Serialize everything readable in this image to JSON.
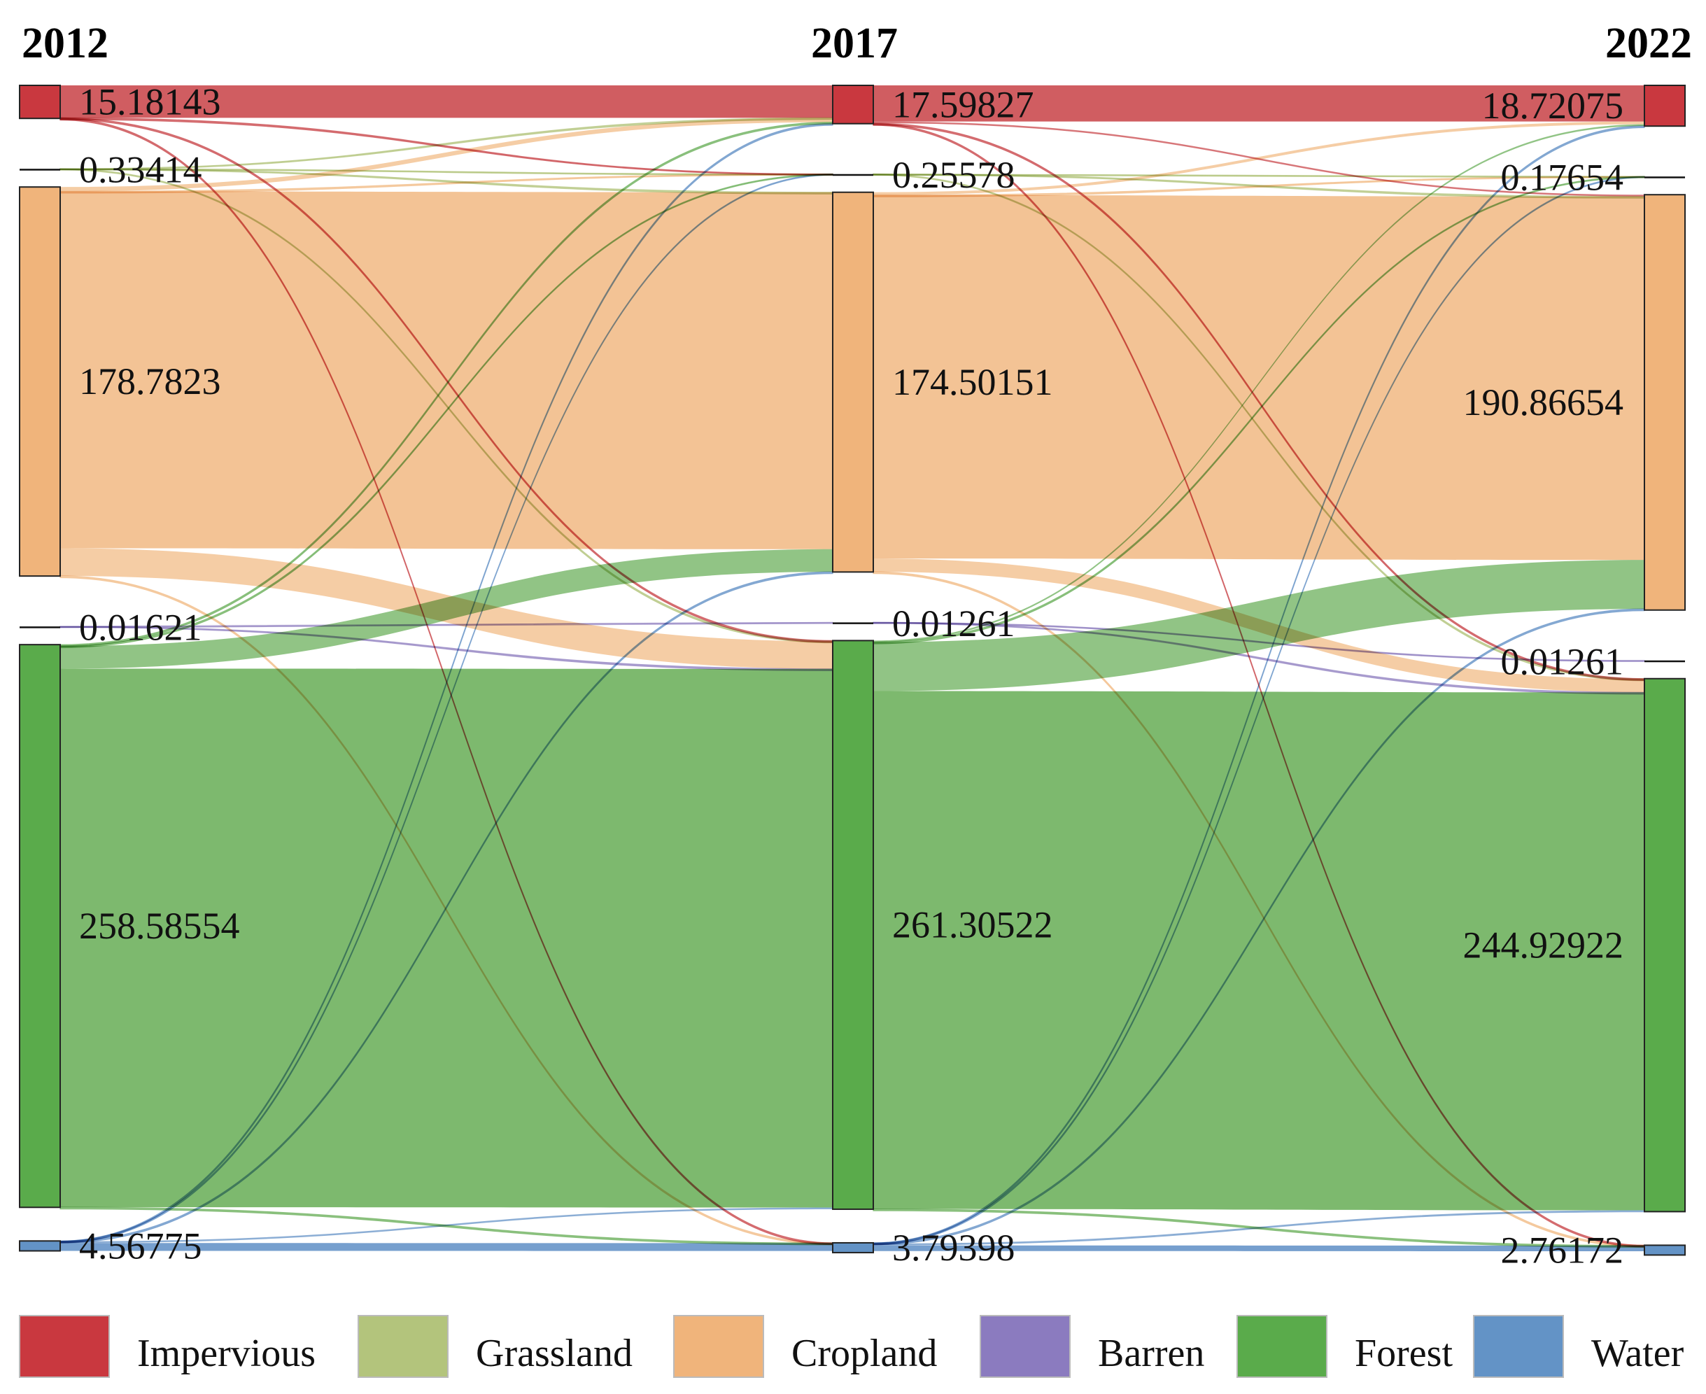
{
  "chart_data": {
    "type": "sankey",
    "title": "",
    "columns": [
      "2012",
      "2017",
      "2022"
    ],
    "categories": [
      {
        "key": "impervious",
        "name": "Impervious",
        "color": "#c9383f",
        "flow_color": "#cd5458"
      },
      {
        "key": "grassland",
        "name": "Grassland",
        "color": "#b3c47c",
        "flow_color": "#b8c885"
      },
      {
        "key": "cropland",
        "name": "Cropland",
        "color": "#f0b47b",
        "flow_color": "#f2c08f"
      },
      {
        "key": "barren",
        "name": "Barren",
        "color": "#8b7bbf",
        "flow_color": "#9a8bc6"
      },
      {
        "key": "forest",
        "name": "Forest",
        "color": "#5aab4b",
        "flow_color": "#76b566"
      },
      {
        "key": "water",
        "name": "Water",
        "color": "#6393c6",
        "flow_color": "#6f9acb"
      }
    ],
    "nodes": [
      {
        "column": "2012",
        "category": "impervious",
        "value": 15.18143,
        "label": "15.18143"
      },
      {
        "column": "2012",
        "category": "grassland",
        "value": 0.33414,
        "label": "0.33414"
      },
      {
        "column": "2012",
        "category": "cropland",
        "value": 178.7823,
        "label": "178.7823"
      },
      {
        "column": "2012",
        "category": "barren",
        "value": 0.01621,
        "label": "0.01621"
      },
      {
        "column": "2012",
        "category": "forest",
        "value": 258.58554,
        "label": "258.58554"
      },
      {
        "column": "2012",
        "category": "water",
        "value": 4.56775,
        "label": "4.56775"
      },
      {
        "column": "2017",
        "category": "impervious",
        "value": 17.59827,
        "label": "17.59827"
      },
      {
        "column": "2017",
        "category": "grassland",
        "value": 0.25578,
        "label": "0.25578"
      },
      {
        "column": "2017",
        "category": "cropland",
        "value": 174.50151,
        "label": "174.50151"
      },
      {
        "column": "2017",
        "category": "barren",
        "value": 0.01261,
        "label": "0.01261"
      },
      {
        "column": "2017",
        "category": "forest",
        "value": 261.30522,
        "label": "261.30522"
      },
      {
        "column": "2017",
        "category": "water",
        "value": 3.79398,
        "label": "3.79398"
      },
      {
        "column": "2022",
        "category": "impervious",
        "value": 18.72075,
        "label": "18.72075"
      },
      {
        "column": "2022",
        "category": "grassland",
        "value": 0.17654,
        "label": "0.17654"
      },
      {
        "column": "2022",
        "category": "cropland",
        "value": 190.86654,
        "label": "190.86654"
      },
      {
        "column": "2022",
        "category": "barren",
        "value": 0.01261,
        "label": "0.01261"
      },
      {
        "column": "2022",
        "category": "forest",
        "value": 244.92922,
        "label": "244.92922"
      },
      {
        "column": "2022",
        "category": "water",
        "value": 2.76172,
        "label": "2.76172"
      }
    ],
    "flows": [
      {
        "from": "2012",
        "to": "2017",
        "source": "impervious",
        "target": "impervious",
        "value": 14.9
      },
      {
        "from": "2012",
        "to": "2017",
        "source": "impervious",
        "target": "grassland",
        "value": 0.02
      },
      {
        "from": "2012",
        "to": "2017",
        "source": "impervious",
        "target": "forest",
        "value": 0.22
      },
      {
        "from": "2012",
        "to": "2017",
        "source": "impervious",
        "target": "water",
        "value": 0.04
      },
      {
        "from": "2012",
        "to": "2017",
        "source": "grassland",
        "target": "impervious",
        "value": 0.02
      },
      {
        "from": "2012",
        "to": "2017",
        "source": "grassland",
        "target": "grassland",
        "value": 0.2
      },
      {
        "from": "2012",
        "to": "2017",
        "source": "grassland",
        "target": "forest",
        "value": 0.1
      },
      {
        "from": "2012",
        "to": "2017",
        "source": "grassland",
        "target": "cropland",
        "value": 0.01
      },
      {
        "from": "2012",
        "to": "2017",
        "source": "cropland",
        "target": "impervious",
        "value": 2.0
      },
      {
        "from": "2012",
        "to": "2017",
        "source": "cropland",
        "target": "grassland",
        "value": 0.02
      },
      {
        "from": "2012",
        "to": "2017",
        "source": "cropland",
        "target": "cropland",
        "value": 164.0
      },
      {
        "from": "2012",
        "to": "2017",
        "source": "cropland",
        "target": "forest",
        "value": 12.7
      },
      {
        "from": "2012",
        "to": "2017",
        "source": "cropland",
        "target": "water",
        "value": 0.06
      },
      {
        "from": "2012",
        "to": "2017",
        "source": "barren",
        "target": "barren",
        "value": 0.01
      },
      {
        "from": "2012",
        "to": "2017",
        "source": "barren",
        "target": "forest",
        "value": 0.006
      },
      {
        "from": "2012",
        "to": "2017",
        "source": "forest",
        "target": "impervious",
        "value": 0.6
      },
      {
        "from": "2012",
        "to": "2017",
        "source": "forest",
        "target": "grassland",
        "value": 0.02
      },
      {
        "from": "2012",
        "to": "2017",
        "source": "forest",
        "target": "cropland",
        "value": 10.4
      },
      {
        "from": "2012",
        "to": "2017",
        "source": "forest",
        "target": "forest",
        "value": 247.5
      },
      {
        "from": "2012",
        "to": "2017",
        "source": "forest",
        "target": "water",
        "value": 0.06
      },
      {
        "from": "2012",
        "to": "2017",
        "source": "water",
        "target": "impervious",
        "value": 0.08
      },
      {
        "from": "2012",
        "to": "2017",
        "source": "water",
        "target": "grassland",
        "value": 0.01
      },
      {
        "from": "2012",
        "to": "2017",
        "source": "water",
        "target": "cropland",
        "value": 0.09
      },
      {
        "from": "2012",
        "to": "2017",
        "source": "water",
        "target": "forest",
        "value": 0.78
      },
      {
        "from": "2012",
        "to": "2017",
        "source": "water",
        "target": "water",
        "value": 3.6
      },
      {
        "from": "2017",
        "to": "2022",
        "source": "impervious",
        "target": "impervious",
        "value": 16.6
      },
      {
        "from": "2017",
        "to": "2022",
        "source": "impervious",
        "target": "cropland",
        "value": 0.8
      },
      {
        "from": "2017",
        "to": "2022",
        "source": "impervious",
        "target": "forest",
        "value": 0.15
      },
      {
        "from": "2017",
        "to": "2022",
        "source": "impervious",
        "target": "water",
        "value": 0.04
      },
      {
        "from": "2017",
        "to": "2022",
        "source": "grassland",
        "target": "grassland",
        "value": 0.15
      },
      {
        "from": "2017",
        "to": "2022",
        "source": "grassland",
        "target": "cropland",
        "value": 0.05
      },
      {
        "from": "2017",
        "to": "2022",
        "source": "grassland",
        "target": "forest",
        "value": 0.05
      },
      {
        "from": "2017",
        "to": "2022",
        "source": "cropland",
        "target": "impervious",
        "value": 1.3
      },
      {
        "from": "2017",
        "to": "2022",
        "source": "cropland",
        "target": "grassland",
        "value": 0.01
      },
      {
        "from": "2017",
        "to": "2022",
        "source": "cropland",
        "target": "cropland",
        "value": 167.0
      },
      {
        "from": "2017",
        "to": "2022",
        "source": "cropland",
        "target": "forest",
        "value": 6.1
      },
      {
        "from": "2017",
        "to": "2022",
        "source": "cropland",
        "target": "water",
        "value": 0.06
      },
      {
        "from": "2017",
        "to": "2022",
        "source": "barren",
        "target": "barren",
        "value": 0.008
      },
      {
        "from": "2017",
        "to": "2022",
        "source": "barren",
        "target": "forest",
        "value": 0.004
      },
      {
        "from": "2017",
        "to": "2022",
        "source": "forest",
        "target": "impervious",
        "value": 0.7
      },
      {
        "from": "2017",
        "to": "2022",
        "source": "forest",
        "target": "grassland",
        "value": 0.01
      },
      {
        "from": "2017",
        "to": "2022",
        "source": "forest",
        "target": "cropland",
        "value": 22.5
      },
      {
        "from": "2017",
        "to": "2022",
        "source": "forest",
        "target": "forest",
        "value": 238.0
      },
      {
        "from": "2017",
        "to": "2022",
        "source": "forest",
        "target": "water",
        "value": 0.08
      },
      {
        "from": "2017",
        "to": "2022",
        "source": "water",
        "target": "impervious",
        "value": 0.1
      },
      {
        "from": "2017",
        "to": "2022",
        "source": "water",
        "target": "grassland",
        "value": 0.01
      },
      {
        "from": "2017",
        "to": "2022",
        "source": "water",
        "target": "cropland",
        "value": 0.2
      },
      {
        "from": "2017",
        "to": "2022",
        "source": "water",
        "target": "forest",
        "value": 0.9
      },
      {
        "from": "2017",
        "to": "2022",
        "source": "water",
        "target": "water",
        "value": 2.58
      }
    ],
    "legend": {
      "position": "bottom"
    }
  }
}
